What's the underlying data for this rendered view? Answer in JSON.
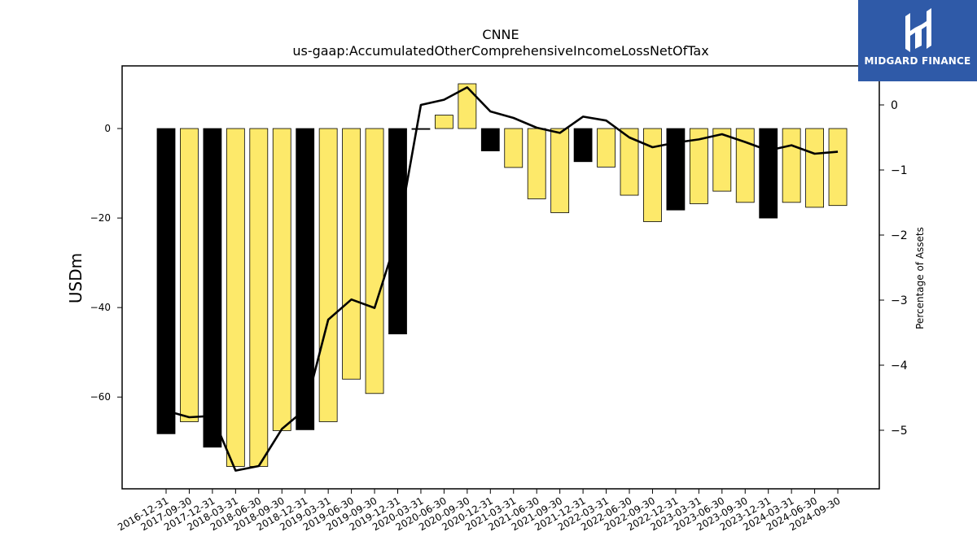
{
  "logo": {
    "text": "MIDGARD FINANCE"
  },
  "chart_data": {
    "type": "bar",
    "title": "CNNE",
    "subtitle": "us-gaap:AccumulatedOtherComprehensiveIncomeLossNetOfTax",
    "ylabel": "USDm",
    "y2label": "Percentage of Assets",
    "ylim": [
      -80.5,
      14
    ],
    "y2lim": [
      -5.9,
      0.6
    ],
    "yticks": [
      0,
      -20,
      -40,
      -60
    ],
    "y2ticks": [
      0,
      -1,
      -2,
      -3,
      -4,
      -5
    ],
    "categories": [
      "2016-12-31",
      "2017-09-30",
      "2017-12-31",
      "2018-03-31",
      "2018-06-30",
      "2018-09-30",
      "2018-12-31",
      "2019-03-31",
      "2019-06-30",
      "2019-09-30",
      "2019-12-31",
      "2020-03-31",
      "2020-06-30",
      "2020-09-30",
      "2020-12-31",
      "2021-03-31",
      "2021-06-30",
      "2021-09-30",
      "2021-12-31",
      "2022-03-31",
      "2022-06-30",
      "2022-09-30",
      "2022-12-31",
      "2023-03-31",
      "2023-06-30",
      "2023-09-30",
      "2023-12-31",
      "2024-03-31",
      "2024-06-30",
      "2024-09-30"
    ],
    "series": [
      {
        "values": [
          -68.2,
          -65.5,
          -71.2,
          -75.5,
          -75.5,
          -67.5,
          -67.3,
          -65.5,
          -56.0,
          -59.2,
          -45.9,
          -0.2,
          3.0,
          10.0,
          -5.0,
          -8.7,
          -15.7,
          -18.8,
          -7.4,
          -8.6,
          -14.9,
          -20.8,
          -18.2,
          -16.8,
          -14.0,
          -16.5,
          -20.0,
          -16.5,
          -17.6,
          -17.2
        ],
        "colors": [
          "#000000",
          "#fde96a",
          "#000000",
          "#fde96a",
          "#fde96a",
          "#fde96a",
          "#000000",
          "#fde96a",
          "#fde96a",
          "#fde96a",
          "#000000",
          "#000000",
          "#fde96a",
          "#fde96a",
          "#000000",
          "#fde96a",
          "#fde96a",
          "#fde96a",
          "#000000",
          "#fde96a",
          "#fde96a",
          "#fde96a",
          "#000000",
          "#fde96a",
          "#fde96a",
          "#fde96a",
          "#000000",
          "#fde96a",
          "#fde96a",
          "#fde96a"
        ]
      },
      {
        "axis": "right",
        "type": "line",
        "color": "#000000",
        "values": [
          -4.7,
          -4.8,
          -4.78,
          -5.62,
          -5.55,
          -4.98,
          -4.68,
          -3.3,
          -2.99,
          -3.12,
          -2.0,
          0.0,
          0.08,
          0.27,
          -0.1,
          -0.2,
          -0.35,
          -0.43,
          -0.18,
          -0.24,
          -0.5,
          -0.65,
          -0.58,
          -0.53,
          -0.45,
          -0.57,
          -0.7,
          -0.62,
          -0.75,
          -0.72
        ]
      }
    ]
  }
}
